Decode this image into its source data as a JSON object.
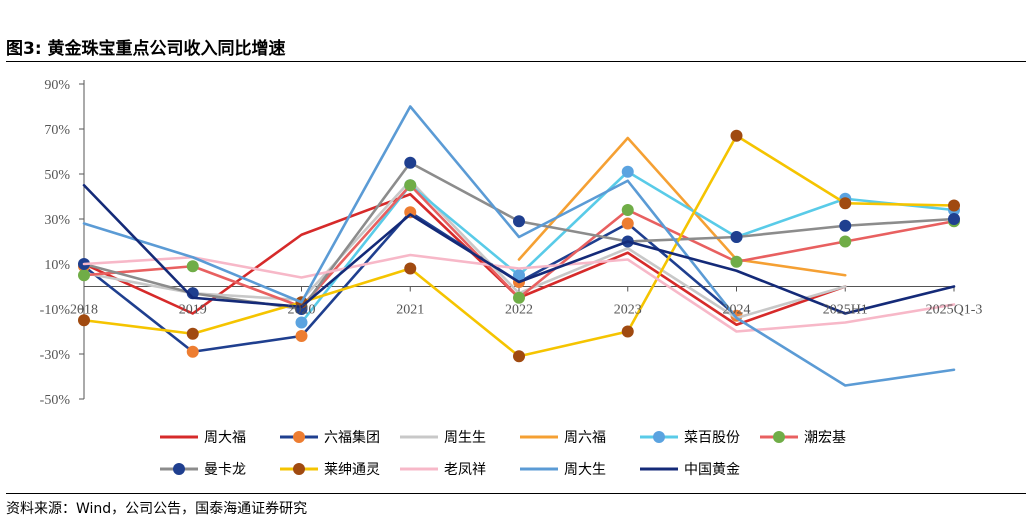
{
  "figure": {
    "title": "图3:  黄金珠宝重点公司收入同比增速",
    "source": "资料来源：Wind，公司公告，国泰海通证券研究"
  },
  "chart_data": {
    "type": "line",
    "categories": [
      "2018",
      "2019",
      "2020",
      "2021",
      "2022",
      "2023",
      "2024",
      "2025H1",
      "2025Q1-3"
    ],
    "ylim": [
      -50,
      90
    ],
    "yticks": [
      -50,
      -30,
      -10,
      10,
      30,
      50,
      70,
      90
    ],
    "ytick_labels": [
      "-50%",
      "-30%",
      "-10%",
      "10%",
      "30%",
      "50%",
      "70%",
      "90%"
    ],
    "grid": false,
    "legend_position": "bottom",
    "series": [
      {
        "name": "周大福",
        "color": "#d62a2a",
        "marker": false,
        "values": [
          10,
          -12,
          23,
          41,
          -5,
          15,
          -17,
          0,
          null
        ]
      },
      {
        "name": "六福集团",
        "color": "#1f3f8f",
        "marker": true,
        "marker_color": "#ed7d31",
        "values": [
          9,
          -29,
          -22,
          33,
          2,
          28,
          -13,
          null,
          null
        ]
      },
      {
        "name": "周生生",
        "color": "#c8c8c8",
        "marker": false,
        "values": [
          6,
          -3,
          -6,
          47,
          -3,
          17,
          -14,
          0,
          null
        ]
      },
      {
        "name": "周六福",
        "color": "#f5a033",
        "marker": false,
        "values": [
          null,
          null,
          null,
          null,
          12,
          66,
          12,
          5,
          null
        ]
      },
      {
        "name": "菜百股份",
        "color": "#59cbe8",
        "marker": true,
        "marker_color": "#5ba3e0",
        "values": [
          null,
          null,
          -16,
          45,
          5,
          51,
          22,
          39,
          34
        ]
      },
      {
        "name": "潮宏基",
        "color": "#e86060",
        "marker": true,
        "marker_color": "#70ad47",
        "values": [
          5,
          9,
          -9,
          45,
          -5,
          34,
          11,
          20,
          29
        ]
      },
      {
        "name": "曼卡龙",
        "color": "#8c8c8c",
        "marker": true,
        "marker_color": "#1f3f8f",
        "values": [
          10,
          -3,
          -10,
          55,
          29,
          20,
          22,
          27,
          30
        ]
      },
      {
        "name": "莱绅通灵",
        "color": "#f5c400",
        "marker": true,
        "marker_color": "#a04a10",
        "values": [
          -15,
          -21,
          -7,
          8,
          -31,
          -20,
          67,
          37,
          36
        ]
      },
      {
        "name": "老凤祥",
        "color": "#f7b8c8",
        "marker": false,
        "values": [
          10,
          13,
          4,
          14,
          8,
          12,
          -20,
          -16,
          -8
        ]
      },
      {
        "name": "周大生",
        "color": "#5b9bd5",
        "marker": false,
        "values": [
          28,
          13,
          -7,
          80,
          22,
          47,
          -14,
          -44,
          -37
        ]
      },
      {
        "name": "中国黄金",
        "color": "#142a78",
        "marker": false,
        "values": [
          45,
          -5,
          -9,
          32,
          2,
          20,
          7,
          -12,
          0
        ]
      }
    ]
  }
}
